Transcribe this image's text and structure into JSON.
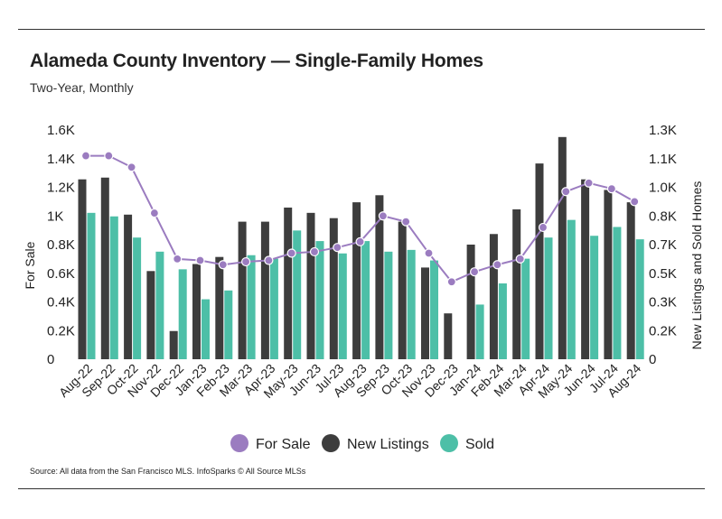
{
  "title": "Alameda County Inventory — Single-Family Homes",
  "subtitle": "Two-Year, Monthly",
  "source": "Source:  All data from the San Francisco MLS. InfoSparks © All Source MLSs",
  "colors": {
    "for_sale": "#9B7CC0",
    "new_listings": "#3D3D3D",
    "sold": "#4DBFA7"
  },
  "chart_data": {
    "type": "bar",
    "categories": [
      "Aug-22",
      "Sep-22",
      "Oct-22",
      "Nov-22",
      "Dec-22",
      "Jan-23",
      "Feb-23",
      "Mar-23",
      "Apr-23",
      "May-23",
      "Jun-23",
      "Jul-23",
      "Aug-23",
      "Sep-23",
      "Oct-23",
      "Nov-23",
      "Dec-23",
      "Jan-24",
      "Feb-24",
      "Mar-24",
      "Apr-24",
      "May-24",
      "Jun-24",
      "Jul-24",
      "Aug-24"
    ],
    "left_axis": {
      "label": "For Sale",
      "ylim": [
        0,
        1600
      ],
      "ticks": [
        "0",
        "0.2K",
        "0.4K",
        "0.6K",
        "0.8K",
        "1K",
        "1.2K",
        "1.4K",
        "1.6K"
      ]
    },
    "right_axis": {
      "label": "New Listings and Sold Homes",
      "ylim": [
        0,
        1300
      ],
      "ticks": [
        "0",
        "0.2K",
        "0.3K",
        "0.5K",
        "0.7K",
        "0.8K",
        "1.0K",
        "1.1K",
        "1.3K"
      ]
    },
    "series": [
      {
        "name": "For Sale",
        "type": "line",
        "axis": "left",
        "values": [
          1420,
          1420,
          1340,
          1020,
          700,
          690,
          660,
          680,
          690,
          740,
          750,
          780,
          820,
          1000,
          960,
          740,
          540,
          610,
          660,
          700,
          920,
          1170,
          1230,
          1190,
          1100
        ]
      },
      {
        "name": "New Listings",
        "type": "bar",
        "axis": "right",
        "values": [
          1020,
          1030,
          820,
          500,
          160,
          540,
          580,
          780,
          780,
          860,
          830,
          800,
          890,
          930,
          780,
          520,
          260,
          650,
          710,
          850,
          1110,
          1260,
          1020,
          960,
          890
        ]
      },
      {
        "name": "Sold",
        "type": "bar",
        "axis": "right",
        "values": [
          830,
          810,
          690,
          610,
          510,
          340,
          390,
          590,
          570,
          730,
          670,
          600,
          670,
          610,
          620,
          560,
          0,
          310,
          430,
          570,
          690,
          790,
          700,
          750,
          680
        ]
      }
    ],
    "legend": {
      "position": "bottom",
      "items": [
        "For Sale",
        "New Listings",
        "Sold"
      ]
    },
    "grid": false
  }
}
